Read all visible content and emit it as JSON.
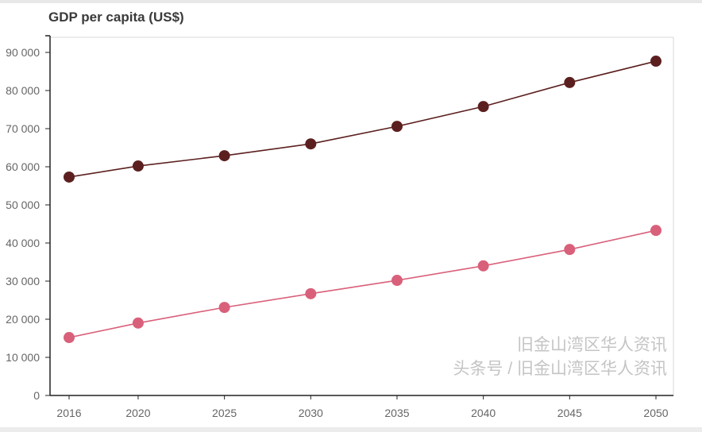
{
  "chart_data": {
    "type": "line",
    "title": "GDP per capita (US$)",
    "xlabel": "",
    "ylabel": "",
    "x": [
      2016,
      2020,
      2025,
      2030,
      2035,
      2040,
      2045,
      2050
    ],
    "x_tick_labels": [
      "2016",
      "2020",
      "2025",
      "2030",
      "2035",
      "2040",
      "2045",
      "2050"
    ],
    "ylim": [
      0,
      90000
    ],
    "y_ticks": [
      0,
      10000,
      20000,
      30000,
      40000,
      50000,
      60000,
      70000,
      80000,
      90000
    ],
    "y_tick_labels": [
      "0",
      "10 000",
      "20 000",
      "30 000",
      "40 000",
      "50 000",
      "60 000",
      "70 000",
      "80 000",
      "90 000"
    ],
    "grid": false,
    "series": [
      {
        "values": [
          57300,
          60200,
          62900,
          66000,
          70600,
          75800,
          82100,
          87700
        ],
        "color": "#5c1f1f"
      },
      {
        "values": [
          15200,
          19000,
          23100,
          26700,
          30200,
          34000,
          38300,
          43300
        ],
        "color": "#d9607a"
      }
    ]
  },
  "watermark": {
    "line1": "旧金山湾区华人资讯",
    "line2": "头条号 / 旧金山湾区华人资讯"
  }
}
